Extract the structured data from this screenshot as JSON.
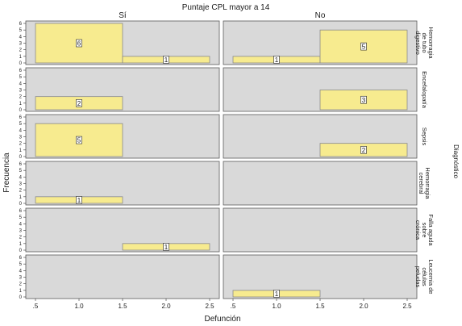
{
  "chart_data": {
    "type": "bar",
    "title": "Puntaje CPL mayor a 14",
    "xlabel": "Defunción",
    "ylabel": "Frecuencia",
    "row_group_label": "Diagnóstico",
    "columns": [
      "Sí",
      "No"
    ],
    "rows": [
      "Hemorragia de tubo digestivo",
      "Encefalopatía",
      "Sepsis",
      "Hemorragia cerebral",
      "Falla aguda sobre crónica",
      "Leucemia de células peludas"
    ],
    "x_ticks": [
      ".5",
      "1.0",
      "1.5",
      "2.0",
      "2.5"
    ],
    "x_tick_values": [
      0.5,
      1.0,
      1.5,
      2.0,
      2.5
    ],
    "xlim": [
      0.5,
      2.5
    ],
    "ylim": [
      0,
      6
    ],
    "y_ticks": [
      0,
      1,
      2,
      3,
      4,
      5,
      6
    ],
    "panel_bg": "#d9d9d9",
    "bar_color": "#f7eb8f",
    "bar_edge": "#8a8a8a",
    "cells": [
      {
        "row": 0,
        "col": 0,
        "bars": [
          {
            "x0": 0.5,
            "x1": 1.5,
            "value": 6,
            "label": "6"
          },
          {
            "x0": 1.5,
            "x1": 2.5,
            "value": 1,
            "label": "1"
          }
        ]
      },
      {
        "row": 0,
        "col": 1,
        "bars": [
          {
            "x0": 0.5,
            "x1": 1.5,
            "value": 1,
            "label": "1"
          },
          {
            "x0": 1.5,
            "x1": 2.5,
            "value": 5,
            "label": "5"
          }
        ]
      },
      {
        "row": 1,
        "col": 0,
        "bars": [
          {
            "x0": 0.5,
            "x1": 1.5,
            "value": 2,
            "label": "2"
          }
        ]
      },
      {
        "row": 1,
        "col": 1,
        "bars": [
          {
            "x0": 1.5,
            "x1": 2.5,
            "value": 3,
            "label": "3"
          }
        ]
      },
      {
        "row": 2,
        "col": 0,
        "bars": [
          {
            "x0": 0.5,
            "x1": 1.5,
            "value": 5,
            "label": "5"
          }
        ]
      },
      {
        "row": 2,
        "col": 1,
        "bars": [
          {
            "x0": 1.5,
            "x1": 2.5,
            "value": 2,
            "label": "2"
          }
        ]
      },
      {
        "row": 3,
        "col": 0,
        "bars": [
          {
            "x0": 0.5,
            "x1": 1.5,
            "value": 1,
            "label": "1"
          }
        ]
      },
      {
        "row": 3,
        "col": 1,
        "bars": []
      },
      {
        "row": 4,
        "col": 0,
        "bars": [
          {
            "x0": 1.5,
            "x1": 2.5,
            "value": 1,
            "label": "1"
          }
        ]
      },
      {
        "row": 4,
        "col": 1,
        "bars": []
      },
      {
        "row": 5,
        "col": 0,
        "bars": []
      },
      {
        "row": 5,
        "col": 1,
        "bars": [
          {
            "x0": 0.5,
            "x1": 1.5,
            "value": 1,
            "label": "1"
          }
        ]
      }
    ]
  }
}
